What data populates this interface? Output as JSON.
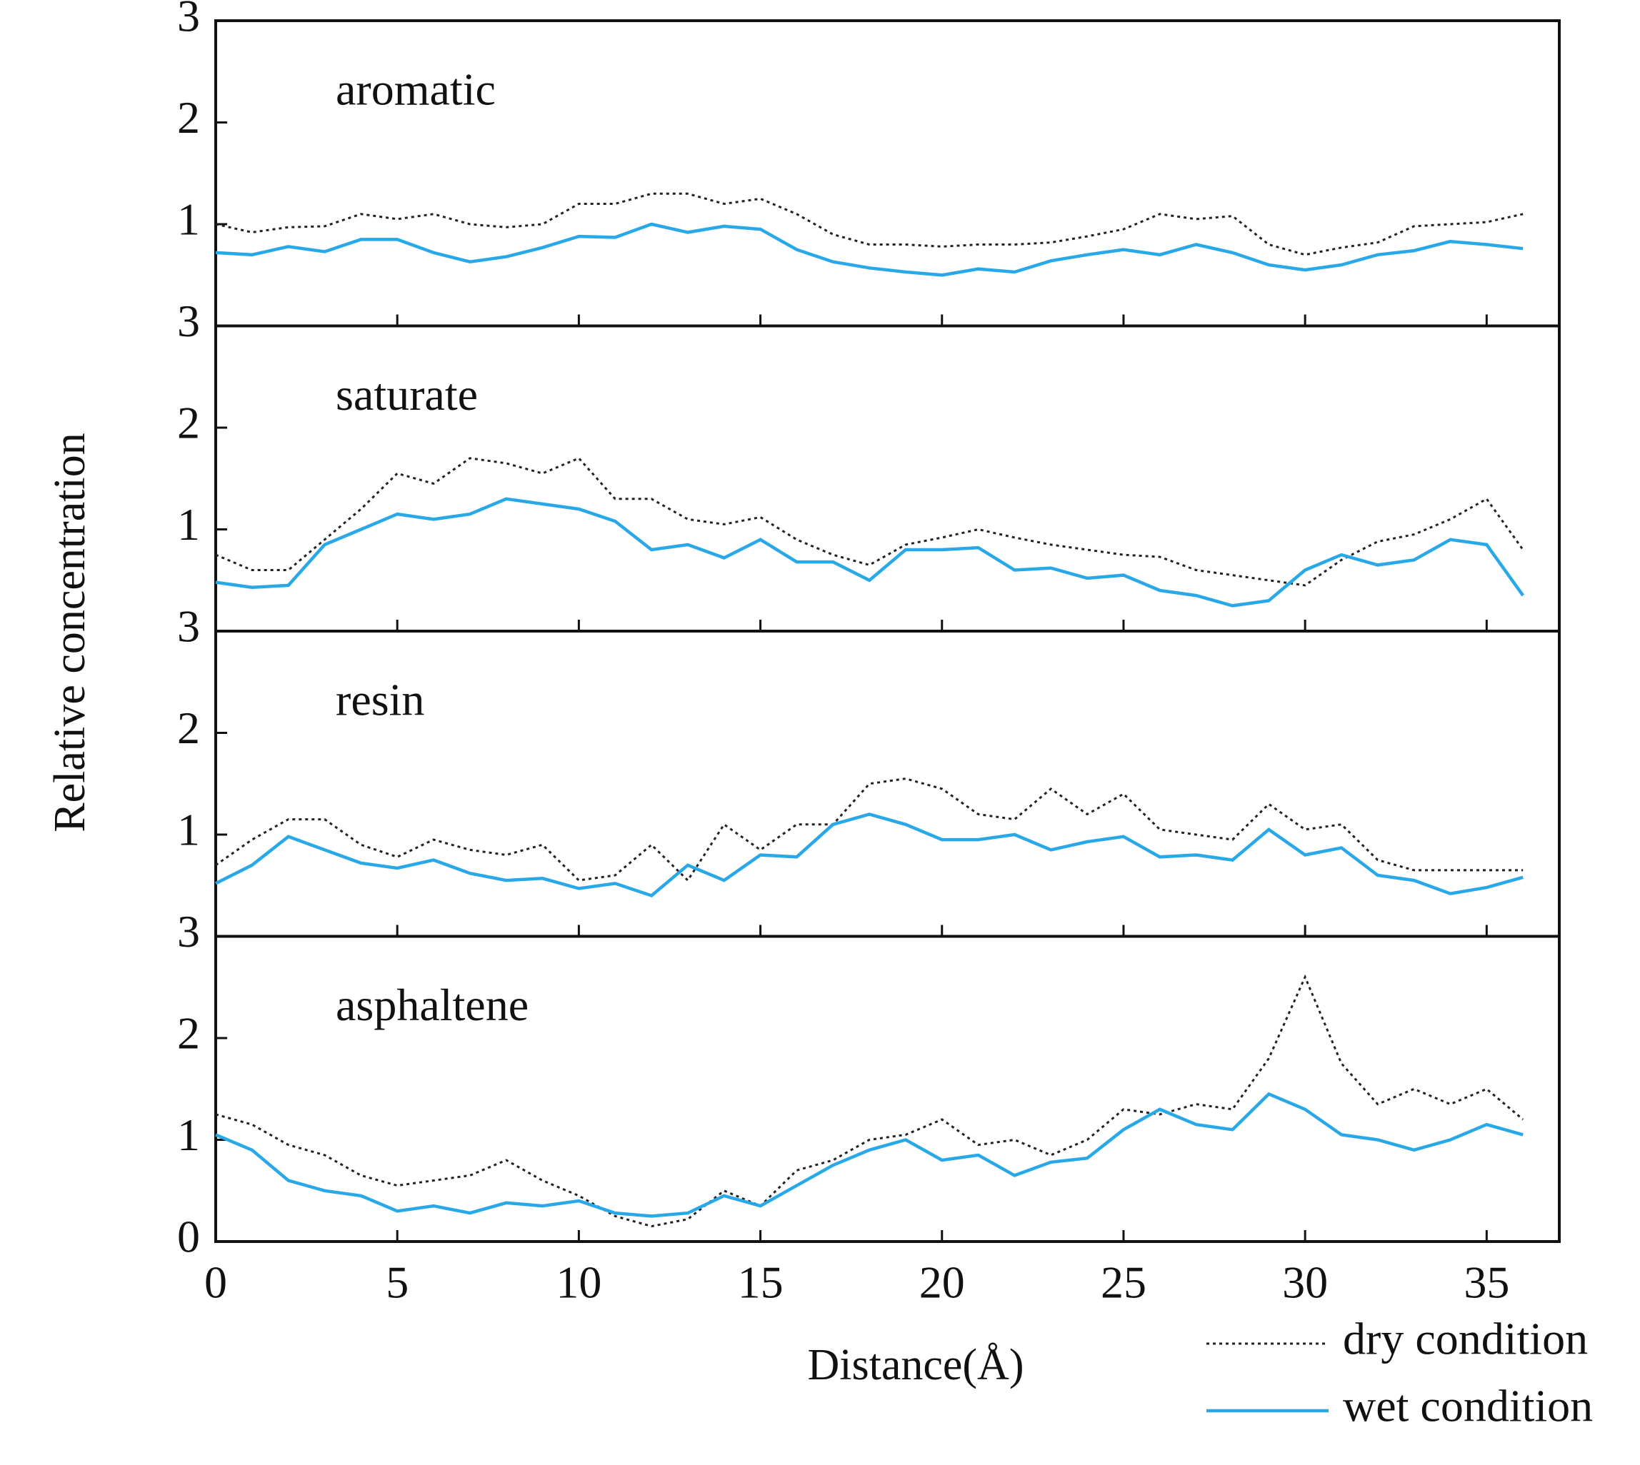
{
  "y_label": "Relative concentration",
  "x_label": "Distance(Å)",
  "chart_data": [
    {
      "type": "line",
      "annotation": "aromatic",
      "xlim": [
        0,
        37
      ],
      "ylim": [
        0,
        3
      ],
      "yticks": [
        1,
        2,
        3
      ],
      "x": [
        0,
        1,
        2,
        3,
        4,
        5,
        6,
        7,
        8,
        9,
        10,
        11,
        12,
        13,
        14,
        15,
        16,
        17,
        18,
        19,
        20,
        21,
        22,
        23,
        24,
        25,
        26,
        27,
        28,
        29,
        30,
        31,
        32,
        33,
        34,
        35,
        36
      ],
      "series": [
        {
          "color": "#222222",
          "dash": "dotted",
          "values": [
            1.0,
            0.92,
            0.97,
            0.98,
            1.1,
            1.05,
            1.1,
            1.0,
            0.97,
            1.0,
            1.2,
            1.2,
            1.3,
            1.3,
            1.2,
            1.25,
            1.1,
            0.9,
            0.8,
            0.8,
            0.78,
            0.8,
            0.8,
            0.82,
            0.88,
            0.95,
            1.1,
            1.05,
            1.08,
            0.8,
            0.7,
            0.77,
            0.82,
            0.98,
            1.0,
            1.02,
            1.1
          ]
        },
        {
          "color": "#29a8e8",
          "dash": "solid",
          "values": [
            0.72,
            0.7,
            0.78,
            0.73,
            0.85,
            0.85,
            0.72,
            0.63,
            0.68,
            0.77,
            0.88,
            0.87,
            1.0,
            0.92,
            0.98,
            0.95,
            0.75,
            0.63,
            0.57,
            0.53,
            0.5,
            0.56,
            0.53,
            0.64,
            0.7,
            0.75,
            0.7,
            0.8,
            0.72,
            0.6,
            0.55,
            0.6,
            0.7,
            0.74,
            0.83,
            0.8,
            0.76
          ]
        }
      ]
    },
    {
      "type": "line",
      "annotation": "saturate",
      "xlim": [
        0,
        37
      ],
      "ylim": [
        0,
        3
      ],
      "yticks": [
        1,
        2,
        3
      ],
      "x": [
        0,
        1,
        2,
        3,
        4,
        5,
        6,
        7,
        8,
        9,
        10,
        11,
        12,
        13,
        14,
        15,
        16,
        17,
        18,
        19,
        20,
        21,
        22,
        23,
        24,
        25,
        26,
        27,
        28,
        29,
        30,
        31,
        32,
        33,
        34,
        35,
        36
      ],
      "series": [
        {
          "color": "#222222",
          "dash": "dotted",
          "values": [
            0.75,
            0.6,
            0.6,
            0.9,
            1.2,
            1.55,
            1.45,
            1.7,
            1.65,
            1.55,
            1.7,
            1.3,
            1.3,
            1.1,
            1.05,
            1.12,
            0.9,
            0.75,
            0.65,
            0.85,
            0.92,
            1.0,
            0.92,
            0.85,
            0.8,
            0.75,
            0.73,
            0.6,
            0.55,
            0.5,
            0.45,
            0.7,
            0.88,
            0.95,
            1.1,
            1.3,
            0.8
          ]
        },
        {
          "color": "#29a8e8",
          "dash": "solid",
          "values": [
            0.48,
            0.43,
            0.45,
            0.85,
            1.0,
            1.15,
            1.1,
            1.15,
            1.3,
            1.25,
            1.2,
            1.08,
            0.8,
            0.85,
            0.72,
            0.9,
            0.68,
            0.68,
            0.5,
            0.8,
            0.8,
            0.82,
            0.6,
            0.62,
            0.52,
            0.55,
            0.4,
            0.35,
            0.25,
            0.3,
            0.6,
            0.75,
            0.65,
            0.7,
            0.9,
            0.85,
            0.35
          ]
        }
      ]
    },
    {
      "type": "line",
      "annotation": "resin",
      "xlim": [
        0,
        37
      ],
      "ylim": [
        0,
        3
      ],
      "yticks": [
        1,
        2,
        3
      ],
      "x": [
        0,
        1,
        2,
        3,
        4,
        5,
        6,
        7,
        8,
        9,
        10,
        11,
        12,
        13,
        14,
        15,
        16,
        17,
        18,
        19,
        20,
        21,
        22,
        23,
        24,
        25,
        26,
        27,
        28,
        29,
        30,
        31,
        32,
        33,
        34,
        35,
        36
      ],
      "series": [
        {
          "color": "#222222",
          "dash": "dotted",
          "values": [
            0.7,
            0.95,
            1.15,
            1.15,
            0.9,
            0.78,
            0.95,
            0.85,
            0.8,
            0.9,
            0.55,
            0.6,
            0.9,
            0.55,
            1.1,
            0.85,
            1.1,
            1.1,
            1.5,
            1.55,
            1.45,
            1.2,
            1.15,
            1.45,
            1.2,
            1.4,
            1.05,
            1.0,
            0.95,
            1.3,
            1.05,
            1.1,
            0.75,
            0.65,
            0.65,
            0.65,
            0.65
          ]
        },
        {
          "color": "#29a8e8",
          "dash": "solid",
          "values": [
            0.52,
            0.7,
            0.98,
            0.85,
            0.72,
            0.67,
            0.75,
            0.62,
            0.55,
            0.57,
            0.47,
            0.52,
            0.4,
            0.7,
            0.55,
            0.8,
            0.78,
            1.1,
            1.2,
            1.1,
            0.95,
            0.95,
            1.0,
            0.85,
            0.93,
            0.98,
            0.78,
            0.8,
            0.75,
            1.05,
            0.8,
            0.87,
            0.6,
            0.55,
            0.42,
            0.48,
            0.58
          ]
        }
      ]
    },
    {
      "type": "line",
      "annotation": "asphaltene",
      "xlim": [
        0,
        37
      ],
      "ylim": [
        0,
        3
      ],
      "yticks": [
        0,
        1,
        2,
        3
      ],
      "xticks": [
        0,
        5,
        10,
        15,
        20,
        25,
        30,
        35
      ],
      "x": [
        0,
        1,
        2,
        3,
        4,
        5,
        6,
        7,
        8,
        9,
        10,
        11,
        12,
        13,
        14,
        15,
        16,
        17,
        18,
        19,
        20,
        21,
        22,
        23,
        24,
        25,
        26,
        27,
        28,
        29,
        30,
        31,
        32,
        33,
        34,
        35,
        36
      ],
      "series": [
        {
          "name": "dry condition",
          "color": "#222222",
          "dash": "dotted",
          "values": [
            1.25,
            1.15,
            0.95,
            0.85,
            0.65,
            0.55,
            0.6,
            0.65,
            0.8,
            0.6,
            0.45,
            0.25,
            0.15,
            0.22,
            0.5,
            0.35,
            0.7,
            0.8,
            1.0,
            1.05,
            1.2,
            0.95,
            1.0,
            0.85,
            1.0,
            1.3,
            1.25,
            1.35,
            1.3,
            1.8,
            2.6,
            1.75,
            1.35,
            1.5,
            1.35,
            1.5,
            1.2
          ]
        },
        {
          "name": "wet condition",
          "color": "#29a8e8",
          "dash": "solid",
          "values": [
            1.05,
            0.9,
            0.6,
            0.5,
            0.45,
            0.3,
            0.35,
            0.28,
            0.38,
            0.35,
            0.4,
            0.28,
            0.25,
            0.28,
            0.45,
            0.35,
            0.55,
            0.75,
            0.9,
            1.0,
            0.8,
            0.85,
            0.65,
            0.78,
            0.82,
            1.1,
            1.3,
            1.15,
            1.1,
            1.45,
            1.3,
            1.05,
            1.0,
            0.9,
            1.0,
            1.15,
            1.05
          ]
        }
      ]
    }
  ]
}
